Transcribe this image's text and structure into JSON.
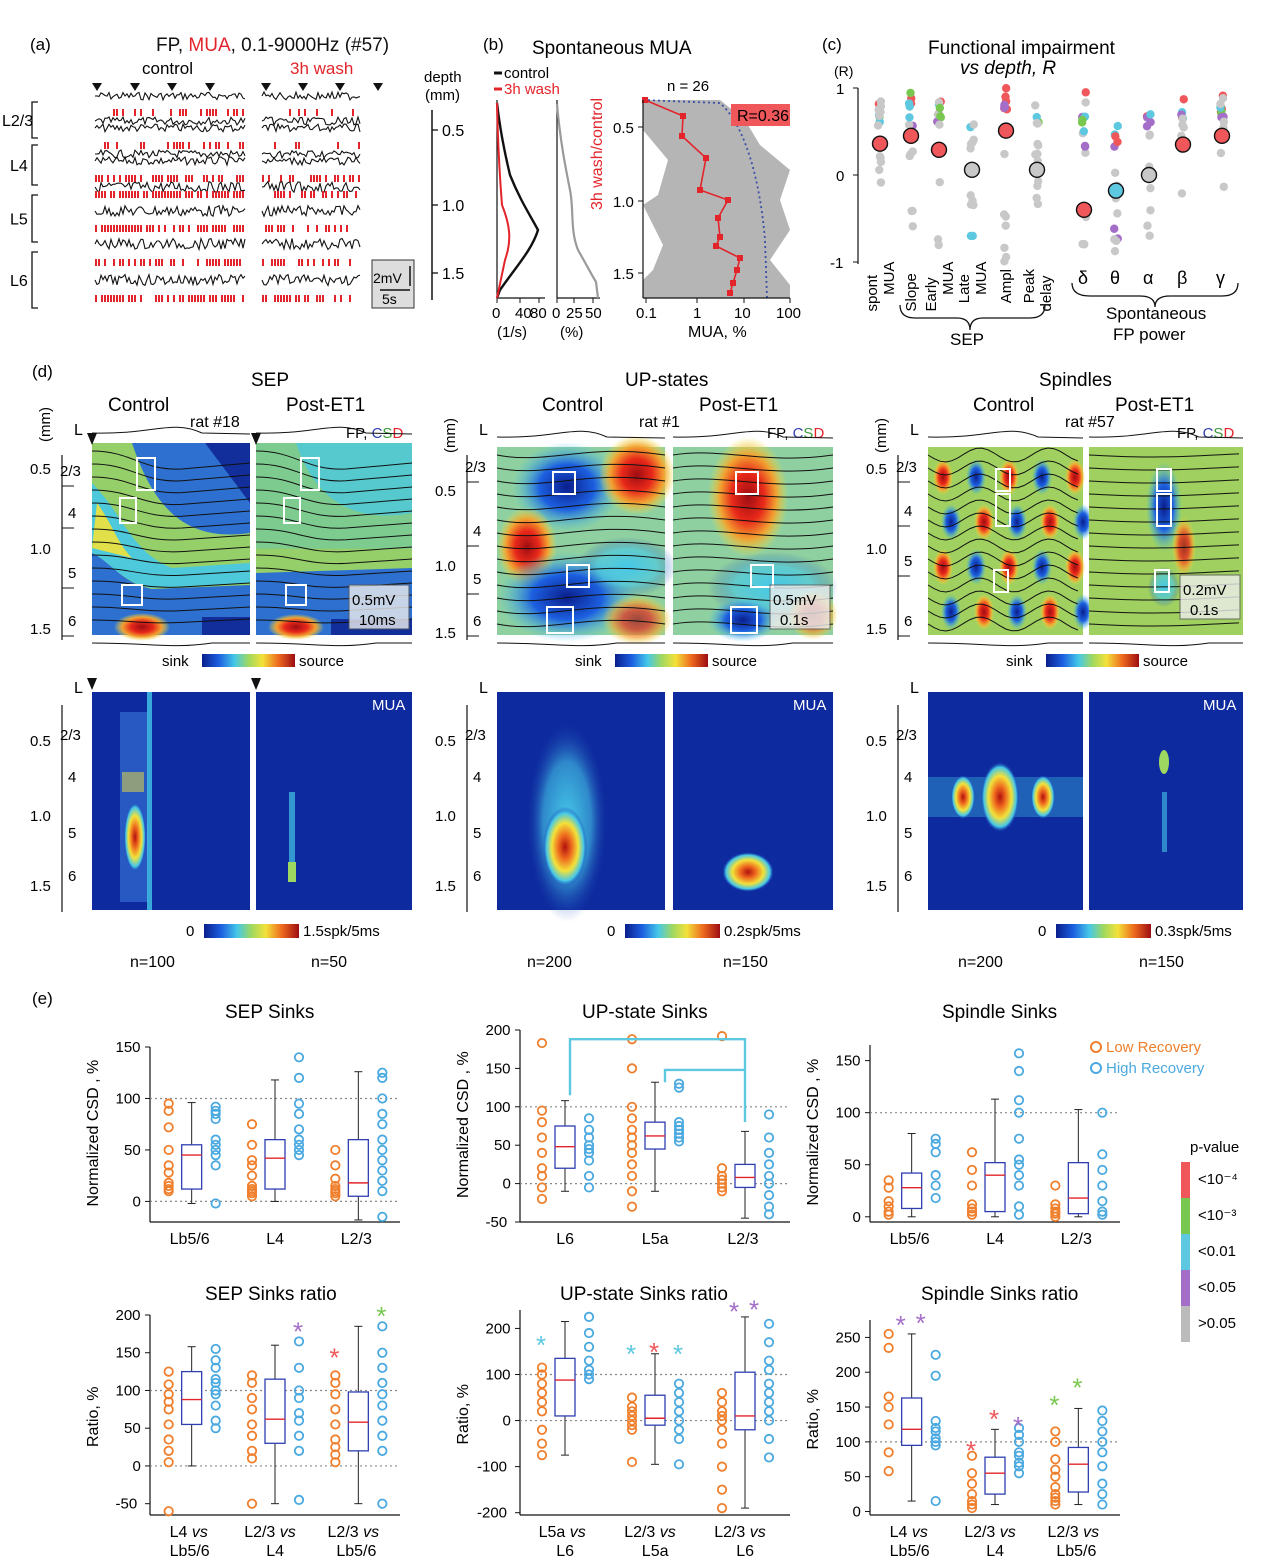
{
  "panels": {
    "a": {
      "letter": "(a)",
      "title_parts": [
        "FP, ",
        "MUA",
        ", 0.1-9000Hz (#57)"
      ],
      "title_colors": [
        "#111111",
        "#e3242b",
        "#111111"
      ],
      "cond_control": "control",
      "cond_wash": "3h wash",
      "depth_label": [
        "depth",
        "(mm)"
      ],
      "layers": [
        "L2/3",
        "L4",
        "L5",
        "L6"
      ],
      "depth_ticks": [
        "0.5",
        "1.0",
        "1.5"
      ],
      "scale_v": "2mV",
      "scale_t": "5s"
    },
    "b": {
      "letter": "(b)",
      "title": "Spontaneous MUA",
      "legend": [
        "control",
        "3h wash"
      ],
      "n_label": "n = 26",
      "y_label": "3h wash/control",
      "r_label": "R=0.36",
      "yticks": [
        "0.5",
        "1.0",
        "1.5"
      ],
      "x1_ticks": [
        "0",
        "40",
        "80"
      ],
      "x1_unit": "(1/s)",
      "x2_ticks": [
        "0",
        "25",
        "50"
      ],
      "x2_unit": "(%)",
      "x3_ticks": [
        "0.1",
        "1",
        "10",
        "100"
      ],
      "x3_label": "MUA, %"
    },
    "c": {
      "letter": "(c)",
      "title": [
        "Functional impairment",
        "vs depth, R"
      ],
      "r_unit": "(R)",
      "yticks": [
        "1",
        "0",
        "-1"
      ],
      "categories": [
        "spont MUA",
        "Slope",
        "Early MUA",
        "Late MUA",
        "Ampl",
        "Peak delay",
        "δ",
        "θ",
        "α",
        "β",
        "γ"
      ],
      "cat_lines": [
        [
          "spont",
          "MUA"
        ],
        [
          "Slope"
        ],
        [
          "Early",
          "MUA"
        ],
        [
          "Late",
          "MUA"
        ],
        [
          "Ampl"
        ],
        [
          "Peak",
          "delay"
        ]
      ],
      "greek": [
        "δ",
        "θ",
        "α",
        "β",
        "γ"
      ],
      "group_sep": "SEP",
      "group_fp": [
        "Spontaneous",
        "FP power"
      ],
      "r_values": [
        0.36,
        0.45,
        0.29,
        0.06,
        0.51,
        0.06,
        -0.4,
        -0.18,
        0.0,
        0.35,
        0.45
      ]
    },
    "d": {
      "letter": "(d)",
      "groups": [
        {
          "title": "SEP",
          "control": "Control",
          "post": "Post-ET1",
          "rat": "rat #18",
          "scale_v": "0.5mV",
          "scale_t": "10ms",
          "n_control": "n=100",
          "n_post": "n=50",
          "mua_scale": "1.5spk/5ms"
        },
        {
          "title": "UP-states",
          "control": "Control",
          "post": "Post-ET1",
          "rat": "rat #1",
          "scale_v": "0.5mV",
          "scale_t": "0.1s",
          "n_control": "n=200",
          "n_post": "n=150",
          "mua_scale": "0.2spk/5ms"
        },
        {
          "title": "Spindles",
          "control": "Control",
          "post": "Post-ET1",
          "rat": "rat #57",
          "scale_v": "0.2mV",
          "scale_t": "0.1s",
          "n_control": "n=200",
          "n_post": "n=150",
          "mua_scale": "0.3spk/5ms"
        }
      ],
      "fp": "FP, ",
      "c_letter": "C",
      "s_letter": "S",
      "d_letter": "D",
      "mm": "(mm)",
      "L": "L",
      "layers": [
        "2/3",
        "4",
        "5",
        "6"
      ],
      "depth_ticks": [
        "0.5",
        "1.0",
        "1.5"
      ],
      "sink": "sink",
      "source": "source",
      "zero": "0",
      "mua_label": "MUA"
    },
    "e": {
      "letter": "(e)",
      "legend_low": "Low Recovery",
      "legend_high": "High Recovery",
      "pvalue_title": "p-value",
      "pvalue_levels": [
        {
          "label": "<10⁻⁴",
          "color": "#f0575a"
        },
        {
          "label": "<10⁻³",
          "color": "#78c850"
        },
        {
          "label": "<0.01",
          "color": "#5ec8e0"
        },
        {
          "label": "<0.05",
          "color": "#a46ec8"
        },
        {
          "label": ">0.05",
          "color": "#bbbbbb"
        }
      ]
    }
  },
  "chart_data": [
    {
      "type": "box",
      "title": "SEP Sinks",
      "ylabel": "Normalized CSD , %",
      "ylim": [
        -20,
        150
      ],
      "yticks": [
        0,
        50,
        100,
        150
      ],
      "categories": [
        [
          "Lb5/6"
        ],
        [
          "L4"
        ],
        [
          "L2/3"
        ]
      ],
      "boxes": [
        {
          "q1": 12,
          "median": 45,
          "q3": 55,
          "wlo": -2,
          "whi": 96
        },
        {
          "q1": 12,
          "median": 42,
          "q3": 60,
          "wlo": 0,
          "whi": 118
        },
        {
          "q1": 5,
          "median": 18,
          "q3": 60,
          "wlo": -18,
          "whi": 126
        }
      ],
      "low": [
        [
          95,
          88,
          72,
          50,
          35,
          28,
          18,
          15,
          12,
          10
        ],
        [
          75,
          55,
          40,
          35,
          25,
          15,
          12,
          10,
          8,
          5
        ],
        [
          50,
          35,
          22,
          15,
          12,
          10,
          8,
          5
        ]
      ],
      "high": [
        [
          92,
          88,
          85,
          80,
          60,
          55,
          50,
          45,
          35,
          -2
        ],
        [
          140,
          120,
          95,
          85,
          70,
          60,
          55,
          50,
          45
        ],
        [
          125,
          120,
          100,
          85,
          75,
          60,
          50,
          40,
          30,
          20,
          10,
          -15
        ]
      ],
      "ref_lines": [
        100,
        0
      ]
    },
    {
      "type": "box",
      "title": "UP-state Sinks",
      "ylabel": "Normalized CSD , %",
      "ylim": [
        -50,
        200
      ],
      "yticks": [
        -50,
        0,
        50,
        100,
        150,
        200
      ],
      "categories": [
        [
          "L6"
        ],
        [
          "L5a"
        ],
        [
          "L2/3"
        ]
      ],
      "boxes": [
        {
          "q1": 20,
          "median": 48,
          "q3": 75,
          "wlo": -10,
          "whi": 108
        },
        {
          "q1": 45,
          "median": 62,
          "q3": 80,
          "wlo": -10,
          "whi": 132
        },
        {
          "q1": -5,
          "median": 8,
          "q3": 25,
          "wlo": -45,
          "whi": 68
        }
      ],
      "low": [
        [
          183,
          95,
          80,
          60,
          40,
          20,
          10,
          -5,
          -20
        ],
        [
          188,
          150,
          100,
          85,
          70,
          60,
          50,
          40,
          25,
          10,
          -10,
          -30
        ],
        [
          192,
          20,
          10,
          5,
          0,
          -5,
          -10
        ]
      ],
      "high": [
        [
          85,
          70,
          60,
          50,
          45,
          40,
          30,
          10,
          -5
        ],
        [
          130,
          125,
          80,
          75,
          70,
          65,
          60,
          55
        ],
        [
          90,
          60,
          40,
          25,
          10,
          0,
          -15,
          -30,
          -40
        ]
      ],
      "ref_lines": [
        100,
        0
      ],
      "brackets": [
        [
          0,
          2
        ],
        [
          1,
          2
        ]
      ]
    },
    {
      "type": "box",
      "title": "Spindle Sinks",
      "ylabel": "Normalized CSD , %",
      "ylim": [
        -5,
        165
      ],
      "yticks": [
        0,
        50,
        100,
        150
      ],
      "categories": [
        [
          "Lb5/6"
        ],
        [
          "L4"
        ],
        [
          "L2/3"
        ]
      ],
      "boxes": [
        {
          "q1": 8,
          "median": 28,
          "q3": 42,
          "wlo": 0,
          "whi": 80
        },
        {
          "q1": 5,
          "median": 40,
          "q3": 52,
          "wlo": 0,
          "whi": 113
        },
        {
          "q1": 3,
          "median": 18,
          "q3": 52,
          "wlo": 0,
          "whi": 103
        }
      ],
      "low": [
        [
          35,
          28,
          15,
          10,
          5,
          2
        ],
        [
          62,
          45,
          30,
          12,
          8,
          5,
          2
        ],
        [
          30,
          12,
          8,
          5,
          3,
          0
        ]
      ],
      "high": [
        [
          75,
          70,
          62,
          40,
          30,
          18
        ],
        [
          157,
          140,
          112,
          100,
          75,
          55,
          50,
          40,
          30,
          10,
          2
        ],
        [
          100,
          60,
          45,
          30,
          15,
          5,
          2
        ]
      ],
      "ref_lines": [
        100
      ]
    },
    {
      "type": "box",
      "title": "SEP Sinks ratio",
      "ylabel": "Ratio, %",
      "ylim": [
        -65,
        200
      ],
      "yticks": [
        -50,
        0,
        50,
        100,
        150,
        200
      ],
      "categories": [
        [
          "L4 vs",
          "Lb5/6"
        ],
        [
          "L2/3 vs",
          "L4"
        ],
        [
          "L2/3 vs",
          "Lb5/6"
        ]
      ],
      "boxes": [
        {
          "q1": 55,
          "median": 88,
          "q3": 125,
          "wlo": 0,
          "whi": 158
        },
        {
          "q1": 30,
          "median": 62,
          "q3": 115,
          "wlo": -50,
          "whi": 160
        },
        {
          "q1": 20,
          "median": 58,
          "q3": 98,
          "wlo": -50,
          "whi": 185
        }
      ],
      "low": [
        [
          125,
          108,
          95,
          85,
          75,
          55,
          35,
          20,
          5,
          -60
        ],
        [
          120,
          110,
          90,
          75,
          55,
          40,
          20,
          10,
          -50
        ],
        [
          120,
          110,
          95,
          75,
          55,
          35,
          25,
          15,
          5
        ]
      ],
      "high": [
        [
          155,
          140,
          130,
          115,
          110,
          100,
          95,
          80,
          60,
          50
        ],
        [
          165,
          130,
          100,
          90,
          70,
          60,
          40,
          20,
          -45
        ],
        [
          185,
          150,
          130,
          110,
          95,
          80,
          60,
          40,
          20,
          -50
        ]
      ],
      "ref_lines": [
        100,
        0
      ],
      "stars": [
        {
          "cat": 1,
          "side": "high",
          "color": "#a46ec8",
          "y": 185,
          "text": "*"
        },
        {
          "cat": 2,
          "side": "low",
          "color": "#f0575a",
          "y": 150,
          "text": "*"
        },
        {
          "cat": 2,
          "side": "high",
          "color": "#78c850",
          "y": 205,
          "text": "*"
        }
      ]
    },
    {
      "type": "box",
      "title": "UP-state Sinks ratio",
      "ylabel": "Ratio, %",
      "ylim": [
        -205,
        240
      ],
      "yticks": [
        -200,
        -100,
        0,
        100,
        200
      ],
      "categories": [
        [
          "L5a vs",
          "L6"
        ],
        [
          "L2/3 vs",
          "L5a"
        ],
        [
          "L2/3 vs",
          "L6"
        ]
      ],
      "boxes": [
        {
          "q1": 10,
          "median": 88,
          "q3": 135,
          "wlo": -75,
          "whi": 215
        },
        {
          "q1": -10,
          "median": 5,
          "q3": 55,
          "wlo": -95,
          "whi": 145
        },
        {
          "q1": -20,
          "median": 10,
          "q3": 105,
          "wlo": -190,
          "whi": 225
        }
      ],
      "low": [
        [
          115,
          100,
          80,
          60,
          40,
          20,
          -20,
          -50,
          -75
        ],
        [
          50,
          30,
          20,
          10,
          0,
          -10,
          -20,
          -90
        ],
        [
          60,
          40,
          20,
          10,
          0,
          -20,
          -50,
          -100,
          -150,
          -190
        ]
      ],
      "high": [
        [
          225,
          190,
          160,
          130,
          110,
          100,
          90
        ],
        [
          80,
          60,
          40,
          20,
          0,
          -20,
          -40,
          -95
        ],
        [
          210,
          170,
          130,
          110,
          80,
          60,
          40,
          20,
          0,
          -40,
          -80
        ]
      ],
      "ref_lines": [
        100,
        0
      ],
      "stars": [
        {
          "cat": 0,
          "side": "low",
          "color": "#5ec8e0",
          "y": 175,
          "text": "*"
        },
        {
          "cat": 1,
          "side": "low",
          "color": "#5ec8e0",
          "y": 155,
          "text": "*"
        },
        {
          "cat": 1,
          "side": "mid",
          "color": "#f0575a",
          "y": 160,
          "text": "*"
        },
        {
          "cat": 1,
          "side": "high",
          "color": "#5ec8e0",
          "y": 155,
          "text": "*"
        },
        {
          "cat": 2,
          "side": "midlow",
          "color": "#a46ec8",
          "y": 248,
          "text": "*"
        },
        {
          "cat": 2,
          "side": "midhigh",
          "color": "#a46ec8",
          "y": 252,
          "text": "*"
        }
      ]
    },
    {
      "type": "box",
      "title": "Spindle Sinks ratio",
      "ylabel": "Ratio, %",
      "ylim": [
        -5,
        275
      ],
      "yticks": [
        0,
        50,
        100,
        150,
        200,
        250
      ],
      "categories": [
        [
          "L4 vs",
          "Lb5/6"
        ],
        [
          "L2/3 vs",
          "L4"
        ],
        [
          "L2/3 vs",
          "Lb5/6"
        ]
      ],
      "boxes": [
        {
          "q1": 95,
          "median": 118,
          "q3": 163,
          "wlo": 15,
          "whi": 255
        },
        {
          "q1": 25,
          "median": 55,
          "q3": 78,
          "wlo": 10,
          "whi": 118
        },
        {
          "q1": 28,
          "median": 68,
          "q3": 92,
          "wlo": 10,
          "whi": 148
        }
      ],
      "low": [
        [
          255,
          235,
          165,
          150,
          125,
          85,
          58
        ],
        [
          80,
          55,
          40,
          25,
          15,
          10,
          5
        ],
        [
          115,
          100,
          75,
          60,
          50,
          35,
          25,
          20,
          15,
          10
        ]
      ],
      "high": [
        [
          225,
          195,
          130,
          120,
          115,
          105,
          100,
          95,
          15
        ],
        [
          120,
          110,
          100,
          85,
          80,
          70,
          65,
          55
        ],
        [
          145,
          130,
          115,
          100,
          85,
          65,
          40,
          25,
          10
        ]
      ],
      "ref_lines": [
        100
      ],
      "stars": [
        {
          "cat": 0,
          "side": "midlow",
          "color": "#a46ec8",
          "y": 275,
          "text": "*"
        },
        {
          "cat": 0,
          "side": "midhigh",
          "color": "#a46ec8",
          "y": 278,
          "text": "*"
        },
        {
          "cat": 1,
          "side": "low",
          "color": "#f0575a",
          "y": 95,
          "text": "*"
        },
        {
          "cat": 1,
          "side": "mid",
          "color": "#f0575a",
          "y": 140,
          "text": "*"
        },
        {
          "cat": 1,
          "side": "high",
          "color": "#a46ec8",
          "y": 130,
          "text": "*"
        },
        {
          "cat": 2,
          "side": "low",
          "color": "#78c850",
          "y": 160,
          "text": "*"
        },
        {
          "cat": 2,
          "side": "mid",
          "color": "#78c850",
          "y": 185,
          "text": "*"
        }
      ]
    }
  ]
}
